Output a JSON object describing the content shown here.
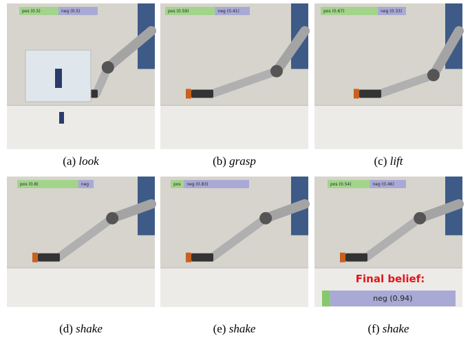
{
  "panels": [
    {
      "label": "(a)",
      "action": "look",
      "pos": {
        "label": "pos (0.5)",
        "value": 0.5
      },
      "neg": {
        "label": "neg (0.5)",
        "value": 0.5
      }
    },
    {
      "label": "(b)",
      "action": "grasp",
      "pos": {
        "label": "pos (0.59)",
        "value": 0.59
      },
      "neg": {
        "label": "neg (0.41)",
        "value": 0.41
      }
    },
    {
      "label": "(c)",
      "action": "lift",
      "pos": {
        "label": "pos (0.67)",
        "value": 0.67
      },
      "neg": {
        "label": "neg (0.33)",
        "value": 0.33
      }
    },
    {
      "label": "(d)",
      "action": "shake",
      "pos": {
        "label": "pos (0.8)",
        "value": 0.8
      },
      "neg": {
        "label": "neg",
        "value": 0.2
      }
    },
    {
      "label": "(e)",
      "action": "shake",
      "pos": {
        "label": "pos",
        "value": 0.17
      },
      "neg": {
        "label": "neg (0.83)",
        "value": 0.83
      }
    },
    {
      "label": "(f)",
      "action": "shake",
      "pos": {
        "label": "pos (0.54)",
        "value": 0.54
      },
      "neg": {
        "label": "neg (0.46)",
        "value": 0.46
      }
    }
  ],
  "final_belief": {
    "title": "Final belief:",
    "pos": {
      "value": 0.06
    },
    "neg": {
      "label": "neg (0.94)",
      "value": 0.94
    }
  }
}
